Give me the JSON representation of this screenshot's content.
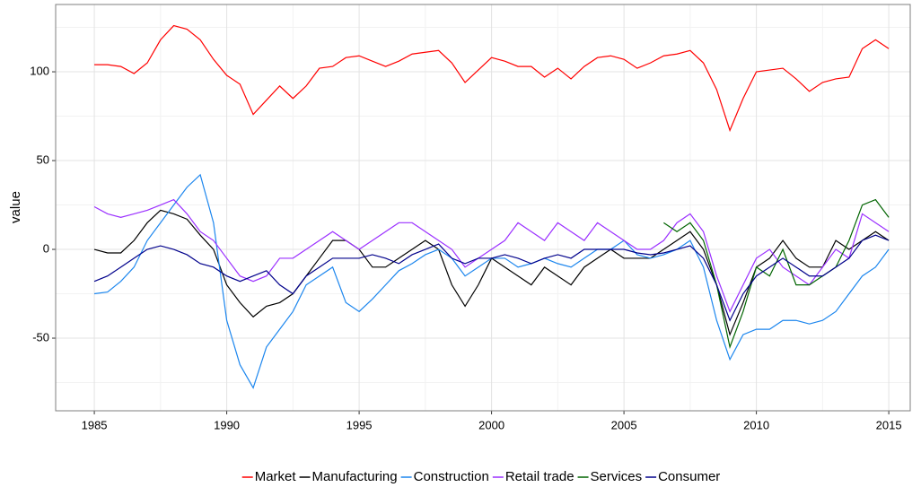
{
  "chart_data": {
    "type": "line",
    "y_label": "value",
    "x": [
      1985,
      1985.5,
      1986,
      1986.5,
      1987,
      1987.5,
      1988,
      1988.5,
      1989,
      1989.5,
      1990,
      1990.5,
      1991,
      1991.5,
      1992,
      1992.5,
      1993,
      1993.5,
      1994,
      1994.5,
      1995,
      1995.5,
      1996,
      1996.5,
      1997,
      1997.5,
      1998,
      1998.5,
      1999,
      1999.5,
      2000,
      2000.5,
      2001,
      2001.5,
      2002,
      2002.5,
      2003,
      2003.5,
      2004,
      2004.5,
      2005,
      2005.5,
      2006,
      2006.5,
      2007,
      2007.5,
      2008,
      2008.5,
      2009,
      2009.5,
      2010,
      2010.5,
      2011,
      2011.5,
      2012,
      2012.5,
      2013,
      2013.5,
      2014,
      2014.5,
      2015
    ],
    "series": [
      {
        "name": "Market",
        "color": "#ff0000",
        "values": [
          104,
          104,
          103,
          99,
          105,
          118,
          126,
          124,
          118,
          107,
          98,
          93,
          76,
          84,
          92,
          85,
          92,
          102,
          103,
          108,
          109,
          106,
          103,
          106,
          110,
          111,
          112,
          105,
          94,
          101,
          108,
          106,
          103,
          103,
          97,
          102,
          96,
          103,
          108,
          109,
          107,
          102,
          105,
          109,
          110,
          112,
          105,
          90,
          67,
          85,
          100,
          101,
          102,
          96,
          89,
          94,
          96,
          97,
          113,
          118,
          113
        ]
      },
      {
        "name": "Manufacturing",
        "color": "#000000",
        "values": [
          0,
          -2,
          -2,
          5,
          15,
          22,
          20,
          17,
          8,
          0,
          -20,
          -30,
          -38,
          -32,
          -30,
          -25,
          -15,
          -5,
          5,
          5,
          0,
          -10,
          -10,
          -5,
          0,
          5,
          0,
          -20,
          -32,
          -20,
          -5,
          -10,
          -15,
          -20,
          -10,
          -15,
          -20,
          -10,
          -5,
          0,
          -5,
          -5,
          -5,
          0,
          5,
          10,
          0,
          -20,
          -48,
          -30,
          -10,
          -5,
          5,
          -5,
          -10,
          -10,
          5,
          0,
          5,
          10,
          5
        ]
      },
      {
        "name": "Construction",
        "color": "#1c86ee",
        "values": [
          -25,
          -24,
          -18,
          -10,
          5,
          15,
          25,
          35,
          42,
          15,
          -40,
          -65,
          -78,
          -55,
          -45,
          -35,
          -20,
          -15,
          -10,
          -30,
          -35,
          -28,
          -20,
          -12,
          -8,
          -3,
          0,
          -5,
          -15,
          -10,
          -5,
          -5,
          -10,
          -8,
          -5,
          -8,
          -10,
          -5,
          0,
          0,
          5,
          -3,
          -5,
          -3,
          0,
          5,
          -10,
          -40,
          -62,
          -48,
          -45,
          -45,
          -40,
          -40,
          -42,
          -40,
          -35,
          -25,
          -15,
          -10,
          0
        ]
      },
      {
        "name": "Retail trade",
        "color": "#9b30ff",
        "values": [
          24,
          20,
          18,
          20,
          22,
          25,
          28,
          20,
          10,
          5,
          -5,
          -15,
          -18,
          -15,
          -5,
          -5,
          0,
          5,
          10,
          5,
          0,
          5,
          10,
          15,
          15,
          10,
          5,
          0,
          -10,
          -5,
          0,
          5,
          15,
          10,
          5,
          15,
          10,
          5,
          15,
          10,
          5,
          0,
          0,
          5,
          15,
          20,
          10,
          -15,
          -35,
          -20,
          -5,
          0,
          -10,
          -15,
          -20,
          -10,
          0,
          -5,
          20,
          15,
          10
        ]
      },
      {
        "name": "Services",
        "color": "#006400",
        "values": [
          null,
          null,
          null,
          null,
          null,
          null,
          null,
          null,
          null,
          null,
          null,
          null,
          null,
          null,
          null,
          null,
          null,
          null,
          null,
          null,
          null,
          null,
          null,
          null,
          null,
          null,
          null,
          null,
          null,
          null,
          null,
          null,
          null,
          null,
          null,
          null,
          null,
          null,
          null,
          null,
          null,
          null,
          null,
          15,
          10,
          15,
          5,
          -20,
          -55,
          -35,
          -10,
          -15,
          0,
          -20,
          -20,
          -15,
          -10,
          5,
          25,
          28,
          18
        ]
      },
      {
        "name": "Consumer",
        "color": "#00008b",
        "values": [
          -18,
          -15,
          -10,
          -5,
          0,
          2,
          0,
          -3,
          -8,
          -10,
          -15,
          -18,
          -15,
          -12,
          -20,
          -25,
          -15,
          -10,
          -5,
          -5,
          -5,
          -3,
          -5,
          -8,
          -3,
          0,
          3,
          -5,
          -8,
          -5,
          -5,
          -3,
          -5,
          -8,
          -5,
          -3,
          -5,
          0,
          0,
          0,
          0,
          -2,
          -3,
          -2,
          0,
          2,
          -5,
          -20,
          -40,
          -25,
          -15,
          -10,
          -5,
          -10,
          -15,
          -15,
          -10,
          -5,
          5,
          8,
          5
        ]
      }
    ],
    "xlim": [
      1983.54,
      2015.81
    ],
    "xticks": [
      1985,
      1990,
      1995,
      2000,
      2005,
      2010,
      2015
    ],
    "ylim": [
      -90.9,
      137.9
    ],
    "yticks": [
      -50,
      0,
      50,
      100
    ],
    "grid": true,
    "legend": "bottom"
  }
}
